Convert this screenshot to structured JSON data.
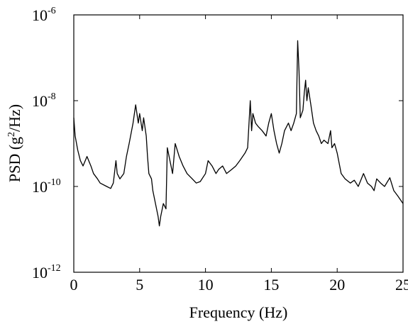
{
  "chart_data": {
    "type": "line",
    "title": "",
    "xlabel": "Frequency (Hz)",
    "ylabel_parts": {
      "pre": "PSD (g",
      "sup": "2",
      "post": "/Hz)"
    },
    "xlim": [
      0,
      25
    ],
    "ylim": [
      1e-12,
      1e-06
    ],
    "yscale": "log",
    "grid": false,
    "legend": "none",
    "x_ticks": [
      0,
      5,
      10,
      15,
      20,
      25
    ],
    "x_tick_labels": [
      "0",
      "5",
      "10",
      "15",
      "20",
      "25"
    ],
    "y_ticks": [
      {
        "value": 1e-06,
        "base": "10",
        "exp": "-6"
      },
      {
        "value": 1e-08,
        "base": "10",
        "exp": "-8"
      },
      {
        "value": 1e-10,
        "base": "10",
        "exp": "-10"
      },
      {
        "value": 1e-12,
        "base": "10",
        "exp": "-12"
      }
    ],
    "line_color": "#000000",
    "series": [
      {
        "x": [
          0,
          0.1,
          0.3,
          0.5,
          0.7,
          1.0,
          1.3,
          1.5,
          1.8,
          2.0,
          2.5,
          2.8,
          3.0,
          3.2,
          3.3,
          3.5,
          3.8,
          4.0,
          4.2,
          4.5,
          4.7,
          4.9,
          5.0,
          5.2,
          5.3,
          5.5,
          5.6,
          5.7,
          5.9,
          6.0,
          6.2,
          6.4,
          6.5,
          6.6,
          6.8,
          7.0,
          7.1,
          7.3,
          7.5,
          7.7,
          8.0,
          8.3,
          8.6,
          9.0,
          9.3,
          9.6,
          10.0,
          10.2,
          10.5,
          10.8,
          11.0,
          11.3,
          11.6,
          12.0,
          12.3,
          12.6,
          13.0,
          13.2,
          13.4,
          13.5,
          13.6,
          13.8,
          14.0,
          14.3,
          14.6,
          14.8,
          15.0,
          15.2,
          15.4,
          15.6,
          15.8,
          16.0,
          16.3,
          16.5,
          16.7,
          16.9,
          17.0,
          17.1,
          17.2,
          17.4,
          17.5,
          17.6,
          17.7,
          17.8,
          18.0,
          18.2,
          18.4,
          18.6,
          18.8,
          19.0,
          19.3,
          19.5,
          19.6,
          19.8,
          20.0,
          20.3,
          20.6,
          21.0,
          21.3,
          21.6,
          22.0,
          22.3,
          22.6,
          22.8,
          23.0,
          23.3,
          23.6,
          24.0,
          24.3,
          24.6,
          25.0
        ],
        "y": [
          4e-09,
          1.5e-09,
          7e-10,
          4e-10,
          3e-10,
          5e-10,
          3e-10,
          2e-10,
          1.5e-10,
          1.2e-10,
          1e-10,
          9e-11,
          1.2e-10,
          4e-10,
          2e-10,
          1.5e-10,
          2e-10,
          5e-10,
          1e-09,
          3e-09,
          8e-09,
          3e-09,
          5e-09,
          2e-09,
          4e-09,
          1.5e-09,
          5e-10,
          2e-10,
          1.5e-10,
          8e-11,
          4e-11,
          2e-11,
          1.2e-11,
          2e-11,
          4e-11,
          3e-11,
          8e-10,
          4e-10,
          2e-10,
          1e-09,
          5e-10,
          3e-10,
          2e-10,
          1.5e-10,
          1.2e-10,
          1.3e-10,
          2e-10,
          4e-10,
          3e-10,
          2e-10,
          2.5e-10,
          3e-10,
          2e-10,
          2.5e-10,
          3e-10,
          4e-10,
          6e-10,
          8e-10,
          1e-08,
          2e-09,
          5e-09,
          3e-09,
          2.5e-09,
          2e-09,
          1.5e-09,
          3e-09,
          5e-09,
          2e-09,
          1e-09,
          6e-10,
          1e-09,
          2e-09,
          3e-09,
          2e-09,
          3e-09,
          5e-09,
          2.5e-07,
          5e-08,
          4e-09,
          6e-09,
          1.5e-08,
          3e-08,
          1e-08,
          2e-08,
          8e-09,
          3e-09,
          2e-09,
          1.5e-09,
          1e-09,
          1.2e-09,
          1e-09,
          2e-09,
          8e-10,
          1e-09,
          6e-10,
          2e-10,
          1.5e-10,
          1.2e-10,
          1.4e-10,
          1e-10,
          2e-10,
          1.2e-10,
          1e-10,
          8e-11,
          1.5e-10,
          1.2e-10,
          1e-10,
          1.6e-10,
          8e-11,
          6e-11,
          4e-11
        ]
      }
    ]
  }
}
